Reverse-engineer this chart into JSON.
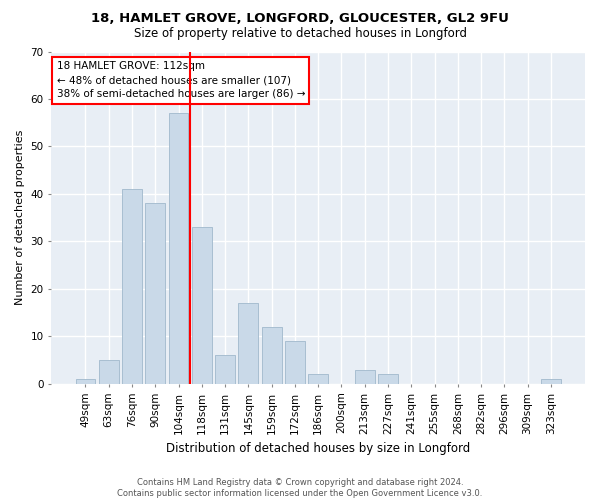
{
  "title1": "18, HAMLET GROVE, LONGFORD, GLOUCESTER, GL2 9FU",
  "title2": "Size of property relative to detached houses in Longford",
  "xlabel": "Distribution of detached houses by size in Longford",
  "ylabel": "Number of detached properties",
  "bar_labels": [
    "49sqm",
    "63sqm",
    "76sqm",
    "90sqm",
    "104sqm",
    "118sqm",
    "131sqm",
    "145sqm",
    "159sqm",
    "172sqm",
    "186sqm",
    "200sqm",
    "213sqm",
    "227sqm",
    "241sqm",
    "255sqm",
    "268sqm",
    "282sqm",
    "296sqm",
    "309sqm",
    "323sqm"
  ],
  "bar_values": [
    1,
    5,
    41,
    38,
    57,
    33,
    6,
    17,
    12,
    9,
    2,
    0,
    3,
    2,
    0,
    0,
    0,
    0,
    0,
    0,
    1
  ],
  "bar_color": "#c9d9e8",
  "bar_edgecolor": "#a0b8cc",
  "vline_x": 5.0,
  "vline_color": "red",
  "ylim": [
    0,
    70
  ],
  "yticks": [
    0,
    10,
    20,
    30,
    40,
    50,
    60,
    70
  ],
  "annotation_title": "18 HAMLET GROVE: 112sqm",
  "annotation_line1": "← 48% of detached houses are smaller (107)",
  "annotation_line2": "38% of semi-detached houses are larger (86) →",
  "footer1": "Contains HM Land Registry data © Crown copyright and database right 2024.",
  "footer2": "Contains public sector information licensed under the Open Government Licence v3.0.",
  "bg_color": "#ffffff",
  "plot_bg_color": "#e8eef5"
}
